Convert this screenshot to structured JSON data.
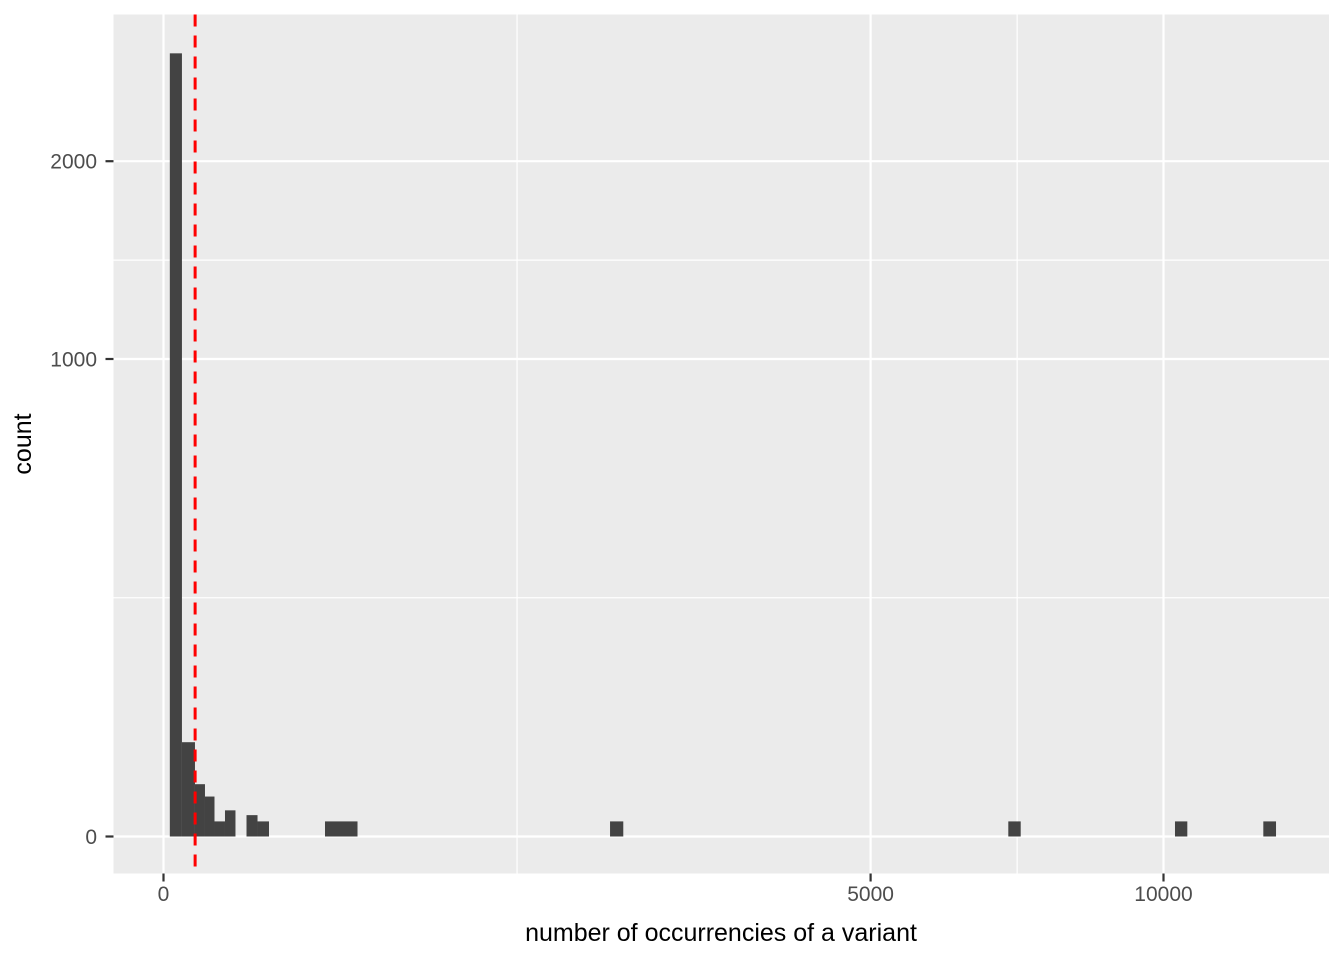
{
  "chart_data": {
    "type": "bar",
    "subtype": "histogram",
    "title": "",
    "xlabel": "number of occurrencies of a variant",
    "ylabel": "count",
    "x_scale": "sqrt",
    "y_scale": "sqrt",
    "x_range": [
      0,
      12377
    ],
    "y_range": [
      0,
      2690
    ],
    "grid": "on",
    "legend": "none",
    "x_ticks": [
      0,
      5000,
      10000
    ],
    "x_tick_labels": [
      "0",
      "5000",
      "10000"
    ],
    "x_minor_ticks": [
      1250,
      7287
    ],
    "y_ticks": [
      0,
      1000,
      2000
    ],
    "y_tick_labels": [
      "0",
      "1000",
      "2000"
    ],
    "y_minor_ticks": [
      250,
      1457
    ],
    "bars": [
      {
        "x0": 0.4,
        "x1": 3.4,
        "count": 2690
      },
      {
        "x0": 3.4,
        "x1": 9.9,
        "count": 39
      },
      {
        "x0": 9.9,
        "x1": 17.2,
        "count": 12
      },
      {
        "x0": 17.2,
        "x1": 26,
        "count": 7
      },
      {
        "x0": 26,
        "x1": 37.8,
        "count": 1
      },
      {
        "x0": 37.8,
        "x1": 51.8,
        "count": 3
      },
      {
        "x0": 68.9,
        "x1": 88.4,
        "count": 2
      },
      {
        "x0": 88.4,
        "x1": 111.3,
        "count": 1
      },
      {
        "x0": 260.8,
        "x1": 376.4,
        "count": 1
      },
      {
        "x0": 1994,
        "x1": 2114,
        "count": 1
      },
      {
        "x0": 7137,
        "x1": 7348,
        "count": 1
      },
      {
        "x0": 10231,
        "x1": 10482,
        "count": 1
      },
      {
        "x0": 12096,
        "x1": 12377,
        "count": 1
      }
    ],
    "vline": {
      "x": 10,
      "linetype": "dashed",
      "color": "#FF0000"
    },
    "colors": {
      "bar_fill": "#434343",
      "panel_bg": "#EBEBEB",
      "grid_major": "#FFFFFF",
      "grid_minor": "#FFFFFF",
      "axis_text": "#4D4D4D",
      "axis_title": "#000000",
      "tick_mark": "#333333",
      "outer_bg": "#FFFFFF"
    }
  }
}
